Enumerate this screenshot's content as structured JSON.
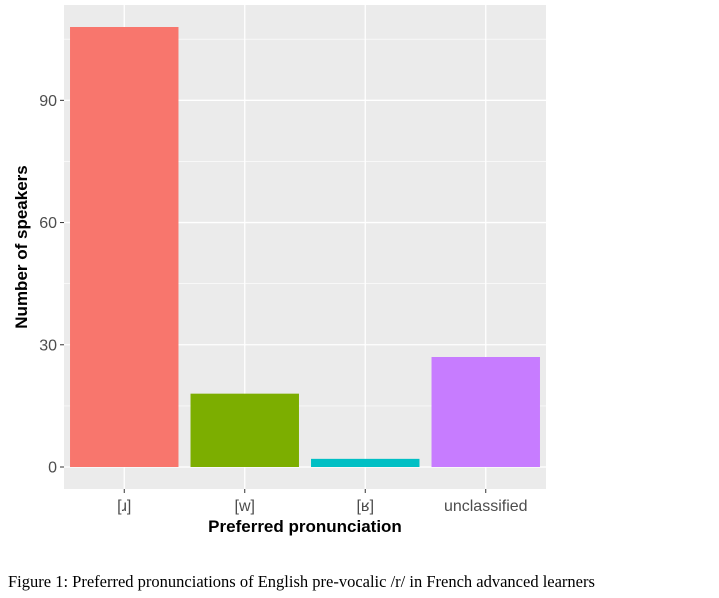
{
  "chart_data": {
    "type": "bar",
    "categories": [
      "[ɹ]",
      "[w]",
      "[ʁ]",
      "unclassified"
    ],
    "values": [
      108,
      18,
      2,
      27
    ],
    "colors": [
      "#F8766D",
      "#7CAE00",
      "#00BFC4",
      "#C77CFF"
    ],
    "xlabel": "Preferred pronunciation",
    "ylabel": "Number of speakers",
    "yticks": [
      0,
      30,
      60,
      90
    ],
    "ylim": [
      -5.4,
      113.4
    ],
    "grid": true,
    "panel_background": "#EBEBEB",
    "legend": "none"
  },
  "caption": "Figure 1: Preferred pronunciations of English pre-vocalic /r/ in French advanced learners"
}
